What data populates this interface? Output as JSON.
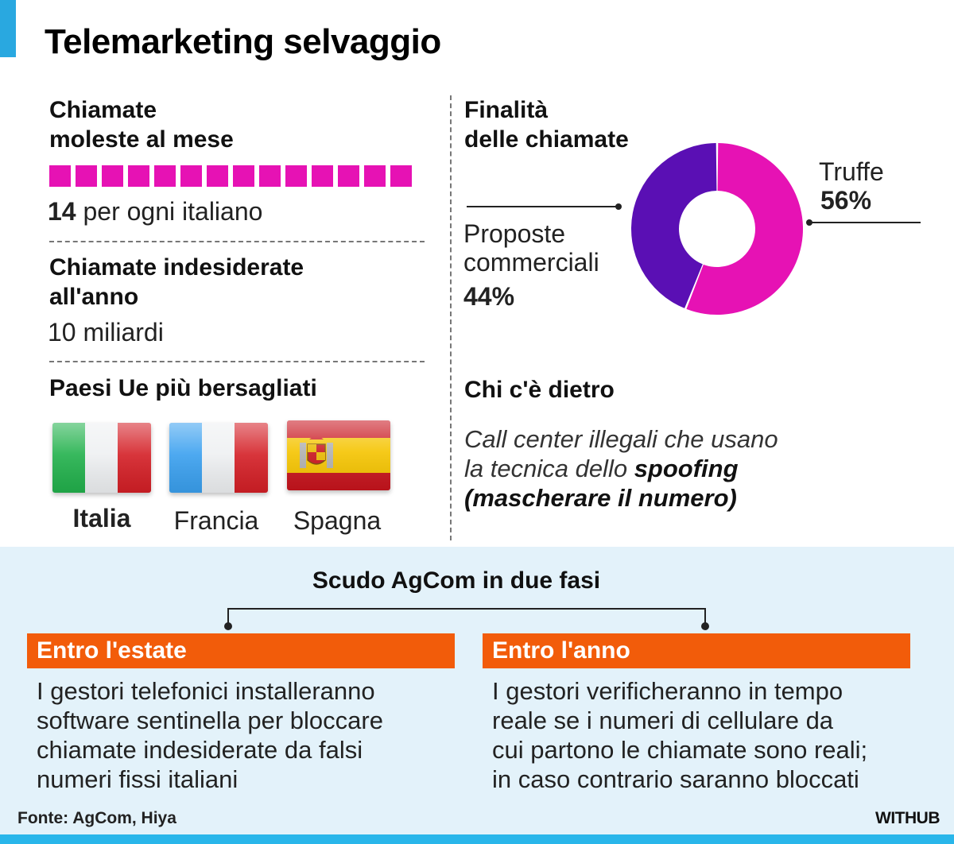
{
  "title": "Telemarketing selvaggio",
  "calls_month": {
    "heading_line1": "Chiamate",
    "heading_line2": "moleste al mese",
    "count": "14",
    "count_text": " per ogni italiano",
    "color": "#e612b4"
  },
  "calls_year": {
    "heading_line1": "Chiamate indesiderate",
    "heading_line2": "all'anno",
    "value": "10 miliardi"
  },
  "countries": {
    "heading": "Paesi Ue più bersagliati",
    "items": [
      "Italia",
      "Francia",
      "Spagna"
    ]
  },
  "purpose": {
    "heading_line1": "Finalità",
    "heading_line2": "delle chiamate"
  },
  "chart_data": {
    "type": "pie",
    "labels": [
      "Truffe",
      "Proposte commerciali"
    ],
    "values": [
      56,
      44
    ],
    "value_labels": [
      "56%",
      "44%"
    ],
    "colors": [
      "#e612b4",
      "#5a0fb4"
    ],
    "label_truffe": "Truffe",
    "label_proposte_line1": "Proposte",
    "label_proposte_line2": "commerciali"
  },
  "behind": {
    "heading": "Chi c'è dietro",
    "line1": "Call center illegali che usano",
    "line2_pre": "la tecnica dello ",
    "line2_bold": "spoofing",
    "line3": "(mascherare il numero)"
  },
  "agcom": {
    "heading": "Scudo AgCom in due fasi",
    "stages": [
      {
        "label": "Entro l'estate",
        "lines": [
          "I gestori telefonici installeranno",
          "software sentinella per bloccare",
          "chiamate indesiderate da falsi",
          "numeri fissi italiani"
        ]
      },
      {
        "label": "Entro l'anno",
        "lines": [
          "I gestori verificheranno in tempo",
          "reale se i numeri di cellulare da",
          "cui partono le chiamate sono reali;",
          "in caso contrario saranno bloccati"
        ]
      }
    ]
  },
  "footer": {
    "source": "Fonte: AgCom, Hiya",
    "brand": "WITHUB"
  },
  "colors": {
    "accent_blue": "#29a8e0",
    "orange": "#f25c0a",
    "panel_bg": "#e3f2fa"
  }
}
